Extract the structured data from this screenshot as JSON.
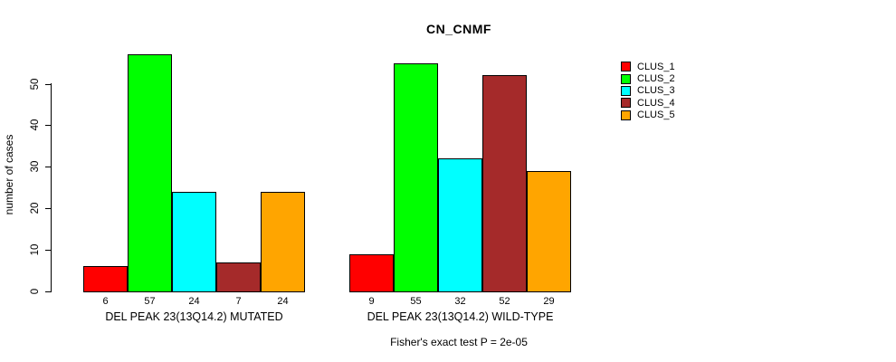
{
  "chart_data": {
    "type": "bar",
    "title": "CN_CNMF",
    "ylabel": "number of cases",
    "xlabel": "",
    "ylim": [
      0,
      50
    ],
    "yticks": [
      0,
      10,
      20,
      30,
      40,
      50
    ],
    "grid": false,
    "legend_position": "right",
    "categories": [
      "DEL PEAK 23(13Q14.2) MUTATED",
      "DEL PEAK 23(13Q14.2) WILD-TYPE"
    ],
    "series": [
      {
        "name": "CLUS_1",
        "color": "#FF0000",
        "values": [
          6,
          9
        ]
      },
      {
        "name": "CLUS_2",
        "color": "#00FF00",
        "values": [
          57,
          55
        ]
      },
      {
        "name": "CLUS_3",
        "color": "#00FFFF",
        "values": [
          24,
          32
        ]
      },
      {
        "name": "CLUS_4",
        "color": "#A52A2A",
        "values": [
          7,
          52
        ]
      },
      {
        "name": "CLUS_5",
        "color": "#FFA500",
        "values": [
          24,
          29
        ]
      }
    ],
    "bar_value_labels_shown": true,
    "annotation": "Fisher's exact test P = 2e-05",
    "background_color": "#FFFFFF",
    "text_color": "#000000"
  }
}
